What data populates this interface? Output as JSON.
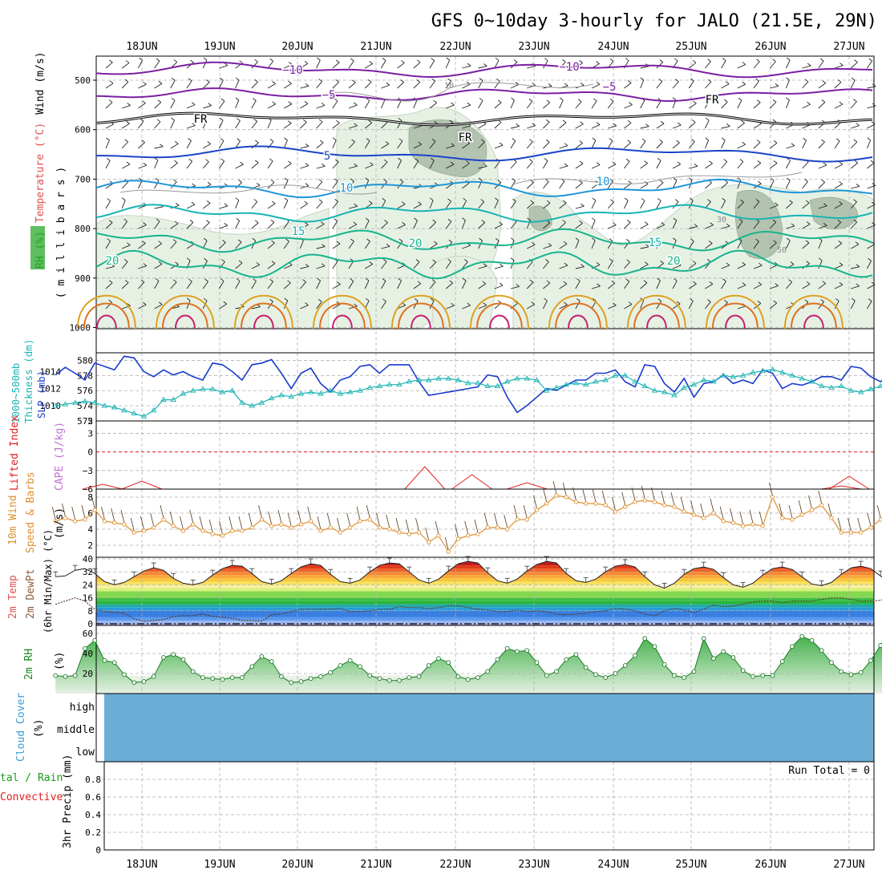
{
  "title": "GFS 0~10day 3-hourly for JALO (21.5E, 29N)",
  "run_total_label": "Run Total = 0",
  "colors": {
    "wind_label": "#000000",
    "temp_label": "#e05050",
    "rh_label": "#1a8a1a",
    "sigma": "#7b1fa2",
    "blue": "#1a44c8",
    "skyblue": "#1e96d8",
    "cyan": "#18b4b4",
    "teal": "#18b48c",
    "orange": "#e0a020",
    "darkorange": "#e07020",
    "slp": "#1a3ccc",
    "thick": "#1cb4b4",
    "lifted": "#e02020",
    "cape": "#c070d0",
    "wind10": "#e09030",
    "cloud": "#6aaed6",
    "precip_total": "#1a9a1a",
    "precip_conv": "#e02020"
  },
  "chart_data": [
    {
      "type": "contour",
      "id": "upper-air",
      "x_dates": [
        "18JUN",
        "19JUN",
        "20JUN",
        "21JUN",
        "22JUN",
        "23JUN",
        "24JUN",
        "25JUN",
        "26JUN",
        "27JUN"
      ],
      "yticks": [
        "500",
        "600",
        "700",
        "800",
        "900",
        "1000"
      ],
      "ylabel_parts": [
        "RH (%)",
        "Temperature (°C)",
        "Wind (m/s)"
      ],
      "ylabel_right": "( m i l l i b a r s )",
      "contour_labels": [
        {
          "text": "−10",
          "series": "minus10"
        },
        {
          "text": "−10",
          "series": "minus10"
        },
        {
          "text": "−5",
          "series": "minus5"
        },
        {
          "text": "−5",
          "series": "minus5"
        },
        {
          "text": "FR",
          "series": "freezing"
        },
        {
          "text": "FR",
          "series": "freezing"
        },
        {
          "text": "FR",
          "series": "freezing"
        },
        {
          "text": "5",
          "series": "five"
        },
        {
          "text": "10",
          "series": "ten"
        },
        {
          "text": "10",
          "series": "ten"
        },
        {
          "text": "15",
          "series": "fifteen"
        },
        {
          "text": "15",
          "series": "fifteen"
        },
        {
          "text": "20",
          "series": "twenty"
        },
        {
          "text": "20",
          "series": "twenty"
        },
        {
          "text": "20",
          "series": "twenty"
        },
        {
          "text": "30",
          "series": "rh"
        },
        {
          "text": "50",
          "series": "rh"
        },
        {
          "text": "10",
          "series": "rh"
        }
      ]
    },
    {
      "type": "line",
      "id": "slp-thickness",
      "ylabel": [
        "1000~500mb",
        "Thickness (dm)",
        "SLP (mb)"
      ],
      "yticks_left": [
        "572",
        "574",
        "576",
        "578",
        "580"
      ],
      "yticks_right": [
        "1010",
        "1012",
        "1014"
      ],
      "ylim_left": [
        572,
        581
      ],
      "ylim_right": [
        1008.2,
        1016.2
      ],
      "series": [
        {
          "role": "slp",
          "values": [
            1013.6,
            1014.5,
            1013.8,
            1013.0,
            1015.0,
            1014.6,
            1014.2,
            1015.8,
            1015.6,
            1014.0,
            1013.4,
            1014.2,
            1013.6,
            1014.0,
            1013.4,
            1013.0,
            1015.0,
            1014.8,
            1014.0,
            1013.0,
            1014.8,
            1015.0,
            1015.4,
            1013.8,
            1012.0,
            1013.8,
            1014.4,
            1012.6,
            1011.6,
            1013.0,
            1013.4,
            1014.6,
            1014.8,
            1013.8,
            1014.8,
            1014.8,
            1014.8,
            1012.8,
            1011.2,
            1011.4,
            1011.6,
            1011.8,
            1012.0,
            1012.2,
            1013.6,
            1013.4,
            1011.0,
            1009.2,
            1010.0,
            1011.0,
            1012.0,
            1011.8,
            1012.4,
            1013.0,
            1013.0,
            1013.8,
            1013.8,
            1014.2,
            1012.8,
            1012.2,
            1014.8,
            1014.6,
            1012.6,
            1011.6,
            1013.2,
            1011.0,
            1012.6,
            1012.8,
            1013.6,
            1012.6,
            1013.0,
            1012.6,
            1014.2,
            1013.8,
            1012.0,
            1012.6,
            1012.4,
            1012.8,
            1013.4,
            1013.4,
            1013.0,
            1014.6,
            1014.4,
            1013.4,
            1012.8,
            1013.8,
            1014.0,
            1013.2,
            1012.6,
            1012.8
          ]
        },
        {
          "role": "thickness",
          "values": [
            574.0,
            574.2,
            574.4,
            574.6,
            574.4,
            574.0,
            573.8,
            573.4,
            573.0,
            572.6,
            573.4,
            574.8,
            574.8,
            575.6,
            576.0,
            576.2,
            576.2,
            575.8,
            576.0,
            574.4,
            574.0,
            574.4,
            575.0,
            575.4,
            575.2,
            575.6,
            575.8,
            575.6,
            576.0,
            575.6,
            575.8,
            576.0,
            576.4,
            576.6,
            576.8,
            576.8,
            577.2,
            577.4,
            577.4,
            577.6,
            577.6,
            577.4,
            577.0,
            577.0,
            576.6,
            576.6,
            577.2,
            577.6,
            577.6,
            577.4,
            576.0,
            576.4,
            576.8,
            577.0,
            576.8,
            577.2,
            577.4,
            578.0,
            578.0,
            577.2,
            576.6,
            576.0,
            575.8,
            575.4,
            576.4,
            576.8,
            577.4,
            577.2,
            578.0,
            577.8,
            578.0,
            578.4,
            578.6,
            578.8,
            578.4,
            578.0,
            577.6,
            577.2,
            576.6,
            576.4,
            576.6,
            576.0,
            575.8,
            576.2,
            576.6,
            576.6,
            576.4,
            576.2,
            576.0,
            576.4
          ]
        }
      ]
    },
    {
      "type": "line",
      "id": "lifted-cape",
      "ylabel": [
        "Lifted Index",
        "CAPE (J/kg)"
      ],
      "yticks": [
        "5",
        "3",
        "0",
        "−3",
        "−6"
      ],
      "ylim": [
        -6,
        5
      ]
    },
    {
      "type": "line",
      "id": "wind10",
      "ylabel": [
        "10m Wind",
        "Speed & Barbs",
        "(m/s)"
      ],
      "yticks": [
        "2",
        "4",
        "6",
        "8"
      ],
      "ylim": [
        0.5,
        9
      ],
      "values": [
        5.0,
        5.4,
        5.0,
        5.2,
        6.4,
        5.0,
        4.8,
        4.6,
        3.6,
        3.8,
        4.2,
        5.2,
        4.4,
        3.8,
        4.6,
        3.8,
        3.4,
        3.2,
        3.8,
        3.8,
        4.2,
        5.2,
        4.4,
        4.6,
        4.2,
        4.6,
        5.0,
        3.8,
        4.2,
        3.6,
        4.2,
        5.0,
        5.2,
        4.2,
        4.0,
        3.6,
        3.4,
        3.6,
        2.4,
        3.2,
        1.2,
        2.8,
        3.2,
        3.4,
        4.2,
        4.2,
        4.0,
        5.2,
        5.2,
        6.4,
        7.2,
        8.2,
        8.0,
        7.4,
        7.2,
        7.2,
        7.0,
        6.2,
        6.8,
        7.4,
        7.6,
        7.4,
        7.0,
        6.8,
        6.2,
        5.8,
        5.4,
        6.0,
        5.0,
        4.8,
        4.4,
        4.6,
        4.4,
        8.0,
        5.4,
        5.2,
        5.8,
        6.4,
        7.0,
        5.4,
        3.6,
        3.6,
        3.6,
        4.2,
        5.2,
        5.6,
        6.4,
        7.4,
        7.0,
        4.8
      ]
    },
    {
      "type": "line",
      "id": "temp2m",
      "ylabel": [
        "2m Temp",
        "2m DewPt",
        "(6hr Min/Max) (°C)"
      ],
      "yticks": [
        "0",
        "8",
        "16",
        "24",
        "32",
        "40"
      ],
      "ylim": [
        -1,
        41
      ],
      "temp": [
        29.0,
        29.5,
        33.0,
        34.0,
        31.0,
        26.0,
        24.0,
        25.5,
        29.0,
        32.5,
        34.5,
        33.0,
        28.0,
        25.0,
        24.0,
        25.5,
        30.0,
        34.0,
        36.0,
        35.5,
        31.0,
        26.0,
        24.5,
        26.5,
        31.0,
        35.0,
        37.0,
        36.0,
        30.5,
        26.0,
        25.0,
        27.0,
        32.0,
        36.0,
        37.5,
        37.0,
        32.0,
        27.0,
        25.0,
        27.5,
        32.5,
        37.0,
        38.5,
        37.5,
        31.5,
        26.5,
        25.0,
        27.5,
        32.5,
        36.5,
        38.5,
        37.5,
        31.0,
        26.5,
        25.5,
        27.5,
        32.0,
        35.5,
        36.5,
        35.0,
        29.0,
        24.0,
        22.0,
        25.0,
        30.5,
        34.0,
        35.0,
        33.5,
        28.5,
        24.0,
        22.5,
        25.0,
        30.0,
        34.0,
        35.0,
        33.5,
        29.0,
        24.5,
        23.5,
        25.5,
        30.5,
        34.5,
        35.5,
        34.0,
        29.5,
        25.0,
        24.0,
        25.5,
        24.0,
        26.5
      ],
      "dewpt": [
        12.0,
        14.0,
        16.0,
        14.0,
        9.0,
        7.5,
        7.0,
        6.5,
        3.0,
        1.5,
        2.0,
        2.5,
        4.5,
        5.0,
        5.0,
        6.0,
        4.5,
        4.0,
        3.5,
        2.0,
        2.0,
        1.5,
        5.5,
        6.0,
        7.5,
        9.0,
        9.0,
        9.0,
        9.0,
        9.5,
        7.5,
        7.5,
        8.0,
        9.0,
        9.0,
        10.5,
        10.0,
        10.0,
        9.5,
        10.0,
        11.0,
        11.0,
        10.0,
        9.0,
        8.5,
        7.5,
        7.5,
        8.5,
        7.5,
        8.0,
        7.5,
        6.0,
        5.5,
        6.0,
        6.5,
        7.5,
        8.0,
        9.5,
        9.0,
        8.0,
        6.0,
        5.0,
        8.0,
        9.5,
        8.5,
        7.0,
        9.0,
        11.5,
        10.5,
        11.0,
        12.0,
        13.5,
        14.0,
        14.0,
        13.0,
        14.0,
        14.0,
        14.0,
        15.0,
        16.0,
        16.0,
        15.0,
        14.0,
        14.0,
        14.5,
        16.0,
        17.0,
        18.0,
        17.0,
        16.0
      ]
    },
    {
      "type": "area",
      "id": "rh2m",
      "ylabel": [
        "2m RH",
        "(%)"
      ],
      "yticks": [
        "20",
        "40",
        "60"
      ],
      "ylim": [
        0,
        68
      ],
      "values": [
        18,
        17,
        18,
        45,
        53,
        33,
        31,
        19,
        11,
        12,
        17,
        36,
        39,
        34,
        22,
        16,
        15,
        14,
        16,
        16,
        27,
        37,
        32,
        17,
        11,
        12,
        15,
        17,
        21,
        28,
        33,
        27,
        18,
        15,
        13,
        13,
        16,
        17,
        28,
        35,
        31,
        17,
        14,
        16,
        22,
        34,
        45,
        42,
        43,
        31,
        18,
        22,
        34,
        39,
        26,
        19,
        16,
        20,
        28,
        38,
        55,
        47,
        29,
        18,
        16,
        22,
        55,
        35,
        42,
        36,
        23,
        17,
        18,
        18,
        32,
        47,
        57,
        53,
        43,
        31,
        22,
        19,
        21,
        33,
        48,
        64,
        66,
        54,
        40
      ]
    },
    {
      "type": "area",
      "id": "cloud",
      "ylabel": [
        "Cloud Cover",
        "(%)"
      ],
      "levels": [
        "high",
        "middle",
        "low"
      ]
    },
    {
      "type": "bar",
      "id": "precip",
      "ylabel": [
        "3hr Precip (mm)"
      ],
      "left_labels": [
        "tal / Rain",
        "Convective"
      ],
      "yticks": [
        "0",
        "0.2",
        "0.4",
        "0.6",
        "0.8"
      ],
      "ylim": [
        0,
        1
      ]
    }
  ]
}
